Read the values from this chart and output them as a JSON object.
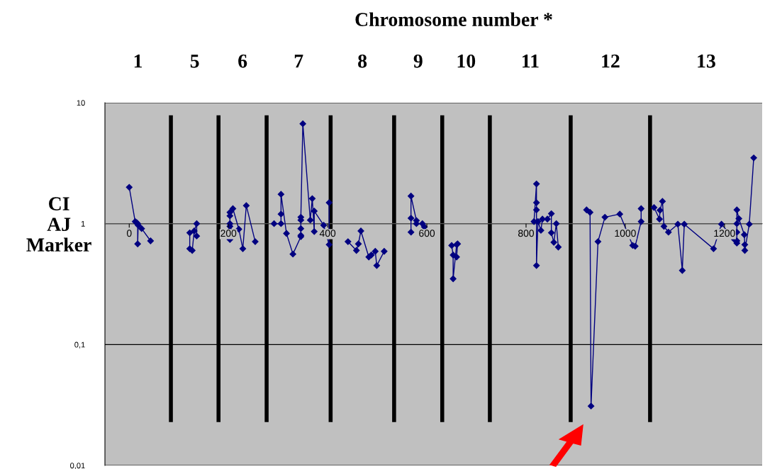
{
  "chart_data": {
    "type": "line",
    "title": "Chromosome number *",
    "annotations": [
      "1",
      "5",
      "6",
      "7",
      "8",
      "9",
      "10",
      "11",
      "12",
      "13"
    ],
    "ylabel": "CI\nAJ\nMarker",
    "xlim": [
      -49,
      1276
    ],
    "ylim": [
      0.01,
      10
    ],
    "xticks": [
      0,
      200,
      400,
      600,
      800,
      1000,
      1200
    ],
    "yticks": [
      {
        "value": 0.01,
        "label": "0,01"
      },
      {
        "value": 0.1,
        "label": "0,1"
      },
      1,
      10
    ],
    "log": "y",
    "grid": "y",
    "legend": false,
    "marker": "diamond",
    "line_style": "solid",
    "ref_lines": [
      {
        "axis": "x",
        "value": 84,
        "color": "#000000"
      },
      {
        "axis": "x",
        "value": 180,
        "color": "#000000"
      },
      {
        "axis": "x",
        "value": 277,
        "color": "#000000"
      },
      {
        "axis": "x",
        "value": 406,
        "color": "#000000"
      },
      {
        "axis": "x",
        "value": 534,
        "color": "#000000"
      },
      {
        "axis": "x",
        "value": 631,
        "color": "#000000"
      },
      {
        "axis": "x",
        "value": 727,
        "color": "#000000"
      },
      {
        "axis": "x",
        "value": 890,
        "color": "#000000"
      },
      {
        "axis": "x",
        "value": 1050,
        "color": "#000000"
      }
    ],
    "series": [
      {
        "color": "#000080",
        "x": [
          0,
          12,
          15,
          17,
          17,
          18,
          25,
          43,
          84,
          122,
          122,
          127,
          131,
          136,
          136,
          180,
          203,
          203,
          203,
          203,
          203,
          203,
          209,
          221,
          229,
          236,
          254,
          277,
          292,
          306,
          306,
          306,
          317,
          330,
          346,
          346,
          346,
          346,
          346,
          350,
          365,
          369,
          373,
          373,
          392,
          403,
          403,
          406,
          441,
          458,
          462,
          467,
          483,
          488,
          496,
          499,
          514,
          534,
          568,
          568,
          568,
          579,
          579,
          591,
          595,
          631,
          650,
          653,
          653,
          660,
          662,
          660,
          727,
          816,
          821,
          821,
          821,
          821,
          824,
          830,
          833,
          843,
          851,
          851,
          856,
          861,
          865,
          890,
          922,
          929,
          931,
          945,
          959,
          989,
          1015,
          1020,
          1032,
          1032,
          1050,
          1058,
          1069,
          1070,
          1075,
          1078,
          1087,
          1106,
          1115,
          1119,
          1178,
          1194,
          1220,
          1225,
          1225,
          1225,
          1225,
          1225,
          1229,
          1240,
          1241,
          1241,
          1250,
          1259
        ],
        "values": [
          2.0,
          1.04,
          1.02,
          1.0,
          0.68,
          0.97,
          0.91,
          0.72,
          null,
          0.84,
          0.62,
          0.6,
          0.87,
          1.0,
          0.79,
          null,
          0.74,
          0.88,
          0.95,
          1.0,
          1.16,
          1.24,
          1.33,
          0.9,
          0.62,
          1.41,
          0.71,
          null,
          1.0,
          1.0,
          1.2,
          1.75,
          0.83,
          0.56,
          0.78,
          0.8,
          0.91,
          1.07,
          1.13,
          6.7,
          1.07,
          1.61,
          0.86,
          1.27,
          0.97,
          0.67,
          1.49,
          null,
          0.71,
          0.6,
          0.68,
          0.87,
          0.53,
          0.55,
          0.59,
          0.45,
          0.59,
          null,
          0.85,
          1.11,
          1.69,
          1.06,
          1.0,
          1.0,
          0.94,
          null,
          0.66,
          0.55,
          0.35,
          0.67,
          0.68,
          0.53,
          null,
          1.04,
          2.13,
          1.49,
          1.3,
          0.45,
          1.04,
          0.88,
          1.09,
          1.09,
          1.21,
          0.84,
          0.7,
          1.0,
          0.64,
          null,
          1.3,
          1.24,
          0.031,
          0.71,
          1.13,
          1.2,
          0.66,
          0.65,
          1.04,
          1.33,
          null,
          1.36,
          1.09,
          1.29,
          1.53,
          0.95,
          0.85,
          0.99,
          0.41,
          0.99,
          0.62,
          0.99,
          0.74,
          0.69,
          0.72,
          0.85,
          1.0,
          1.3,
          1.1,
          0.81,
          0.67,
          0.6,
          0.99,
          3.5
        ]
      }
    ]
  }
}
